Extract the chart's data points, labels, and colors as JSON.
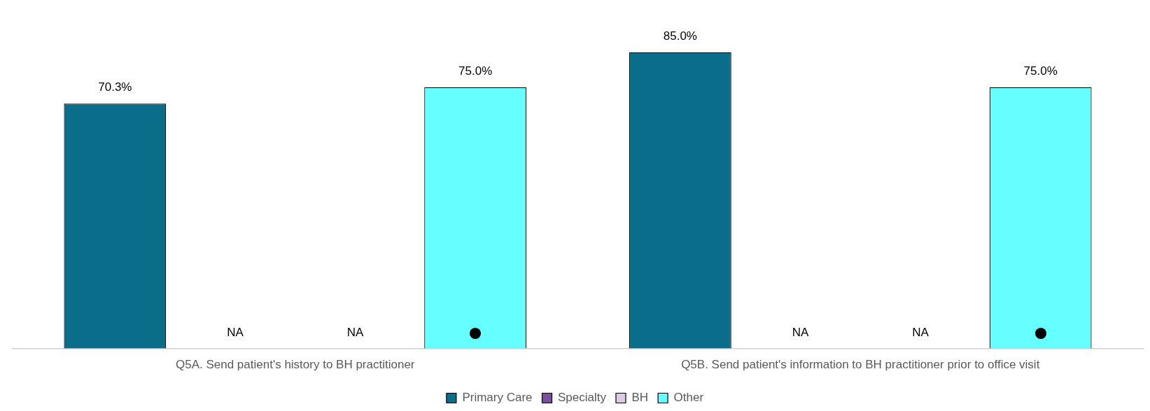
{
  "chart_data": {
    "type": "bar",
    "categories": [
      "Q5A. Send patient's history to BH practitioner",
      "Q5B. Send patient's information to BH practitioner prior to office visit"
    ],
    "relative": false,
    "series": [
      {
        "name": "Primary Care",
        "color": "#0a6e8a",
        "values": [
          70.3,
          85.0
        ],
        "value_labels": [
          "70.3%",
          "85.0%"
        ]
      },
      {
        "name": "Specialty",
        "color": "#7b4fa0",
        "values": [
          null,
          null
        ],
        "value_labels": [
          "NA",
          "NA"
        ]
      },
      {
        "name": "BH",
        "color": "#dccbe3",
        "values": [
          null,
          null
        ],
        "value_labels": [
          "NA",
          "NA"
        ]
      },
      {
        "name": "Other",
        "color": "#66ffff",
        "values": [
          75.0,
          75.0
        ],
        "value_labels": [
          "75.0%",
          "75.0%"
        ]
      }
    ],
    "legend": "bottom",
    "grid": false
  }
}
